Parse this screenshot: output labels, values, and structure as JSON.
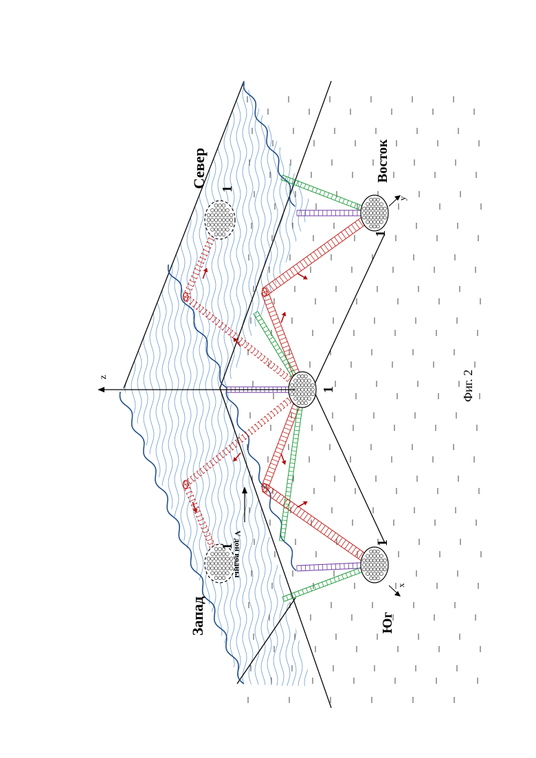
{
  "figure": {
    "caption": "Фиг. 2",
    "directions": {
      "north": "Север",
      "south": "Юг",
      "east": "Восток",
      "west": "Запад"
    },
    "axes": {
      "x": "x",
      "y": "y",
      "z": "z"
    },
    "flow_label": "V дон волны",
    "node_number": "1",
    "colors": {
      "surface_waves": "#6a9bd0",
      "wave_edge": "#1f4e8c",
      "cable_red": "#c0221d",
      "cable_green": "#1e9a3a",
      "cable_purple": "#6b3aa0",
      "arrow": "#b01010",
      "outline": "#000000",
      "bottom_dash": "#444444"
    }
  }
}
